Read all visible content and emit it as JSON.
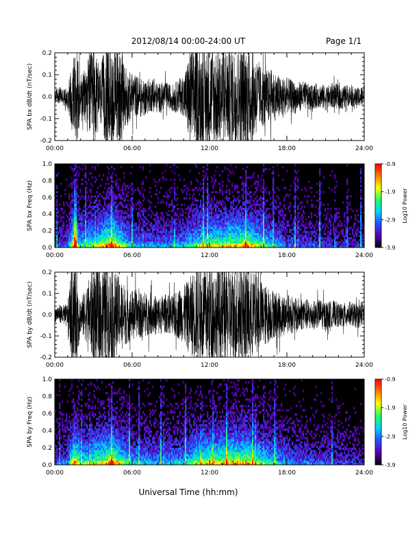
{
  "header": {
    "date_range": "2012/08/14  00:00-24:00 UT",
    "page": "Page 1/1"
  },
  "xlabel": "Universal Time (hh:mm)",
  "colors": {
    "trace": "#000000",
    "spectrogram_background": "#000000",
    "colormap": [
      "#000000",
      "#5a00b0",
      "#2850ff",
      "#00d2ff",
      "#20ff60",
      "#ffff00",
      "#ff7800",
      "#ff0000"
    ]
  },
  "chart_data": [
    {
      "type": "line",
      "ylabel": "SPA bx dB/dt (nT/sec)",
      "x_tick_labels": [
        "00:00",
        "06:00",
        "12:00",
        "18:00",
        "24:00"
      ],
      "xlim": [
        0,
        24
      ],
      "ylim": [
        -0.2,
        0.2
      ],
      "y_ticks": [
        -0.2,
        -0.1,
        0.0,
        0.1,
        0.2
      ],
      "y_tick_labels": [
        "-0.2",
        "-0.1",
        "0.0",
        "0.1",
        "0.2"
      ],
      "amplitude_envelope": {
        "hour": [
          0,
          1,
          1.5,
          1.7,
          2,
          2.5,
          3,
          3.5,
          4,
          4.5,
          5,
          5.5,
          6,
          7,
          8,
          9,
          10,
          10.5,
          11,
          12,
          13,
          14,
          15,
          15.5,
          16,
          17,
          18,
          19,
          20,
          21,
          22,
          23,
          24
        ],
        "amplitude": [
          0.03,
          0.04,
          0.2,
          0.2,
          0.07,
          0.14,
          0.2,
          0.12,
          0.2,
          0.2,
          0.2,
          0.12,
          0.09,
          0.07,
          0.06,
          0.05,
          0.08,
          0.2,
          0.2,
          0.2,
          0.2,
          0.2,
          0.2,
          0.17,
          0.12,
          0.1,
          0.07,
          0.06,
          0.05,
          0.05,
          0.05,
          0.04,
          0.04
        ]
      }
    },
    {
      "type": "heatmap",
      "ylabel": "SPA bx Freq (Hz)",
      "x_tick_labels": [
        "00:00",
        "06:00",
        "12:00",
        "18:00",
        "24:00"
      ],
      "xlim": [
        0,
        24
      ],
      "ylim": [
        0,
        1.0
      ],
      "y_ticks": [
        0.0,
        0.2,
        0.4,
        0.6,
        0.8,
        1.0
      ],
      "y_tick_labels": [
        "0.0",
        "0.2",
        "0.4",
        "0.6",
        "0.8",
        "1.0"
      ],
      "colorbar": {
        "label": "Log10 Power",
        "range": [
          -3.9,
          -0.9
        ],
        "tick_labels": [
          "-0.9",
          "-1.9",
          "-2.9",
          "-3.9"
        ]
      },
      "activity": {
        "hour": [
          0,
          1,
          1.5,
          2,
          3,
          4,
          4.5,
          5,
          6,
          8,
          10,
          11,
          12,
          13,
          14,
          15,
          16,
          17,
          18,
          20,
          22,
          24
        ],
        "level": [
          0.2,
          0.3,
          0.9,
          0.5,
          0.6,
          0.8,
          0.9,
          0.7,
          0.4,
          0.35,
          0.4,
          0.6,
          0.7,
          0.7,
          0.75,
          0.8,
          0.6,
          0.45,
          0.3,
          0.25,
          0.2,
          0.2
        ]
      }
    },
    {
      "type": "line",
      "ylabel": "SPA by dB/dt (nT/sec)",
      "x_tick_labels": [
        "00:00",
        "06:00",
        "12:00",
        "18:00",
        "24:00"
      ],
      "xlim": [
        0,
        24
      ],
      "ylim": [
        -0.2,
        0.2
      ],
      "y_ticks": [
        -0.2,
        -0.1,
        0.0,
        0.1,
        0.2
      ],
      "y_tick_labels": [
        "-0.2",
        "-0.1",
        "0.0",
        "0.1",
        "0.2"
      ],
      "amplitude_envelope": {
        "hour": [
          0,
          1,
          1.3,
          1.5,
          1.7,
          2,
          2.5,
          3,
          3.5,
          4,
          4.5,
          5,
          5.5,
          6,
          7,
          8,
          9,
          10,
          11,
          12,
          13,
          14,
          15,
          16,
          17,
          18,
          19,
          20,
          21,
          22,
          23,
          24
        ],
        "amplitude": [
          0.03,
          0.05,
          0.2,
          0.2,
          0.2,
          0.07,
          0.12,
          0.2,
          0.2,
          0.2,
          0.2,
          0.15,
          0.12,
          0.1,
          0.09,
          0.08,
          0.08,
          0.12,
          0.2,
          0.2,
          0.2,
          0.2,
          0.2,
          0.14,
          0.1,
          0.08,
          0.07,
          0.06,
          0.06,
          0.05,
          0.05,
          0.05
        ]
      }
    },
    {
      "type": "heatmap",
      "ylabel": "SPA by Freq (Hz)",
      "x_tick_labels": [
        "00:00",
        "06:00",
        "12:00",
        "18:00",
        "24:00"
      ],
      "xlim": [
        0,
        24
      ],
      "ylim": [
        0,
        1.0
      ],
      "y_ticks": [
        0.0,
        0.2,
        0.4,
        0.6,
        0.8,
        1.0
      ],
      "y_tick_labels": [
        "0.0",
        "0.2",
        "0.4",
        "0.6",
        "0.8",
        "1.0"
      ],
      "colorbar": {
        "label": "Log10 Power",
        "range": [
          -3.9,
          -0.9
        ],
        "tick_labels": [
          "-0.9",
          "-1.9",
          "-2.9",
          "-3.9"
        ]
      },
      "activity": {
        "hour": [
          0,
          1,
          1.5,
          2,
          3,
          4,
          4.5,
          5,
          6,
          8,
          10,
          11,
          12,
          13,
          14,
          15,
          16,
          17,
          18,
          20,
          22,
          24
        ],
        "level": [
          0.25,
          0.35,
          0.9,
          0.55,
          0.65,
          0.8,
          0.9,
          0.7,
          0.45,
          0.4,
          0.45,
          0.65,
          0.75,
          0.75,
          0.8,
          0.8,
          0.6,
          0.5,
          0.35,
          0.3,
          0.25,
          0.2
        ]
      }
    }
  ]
}
